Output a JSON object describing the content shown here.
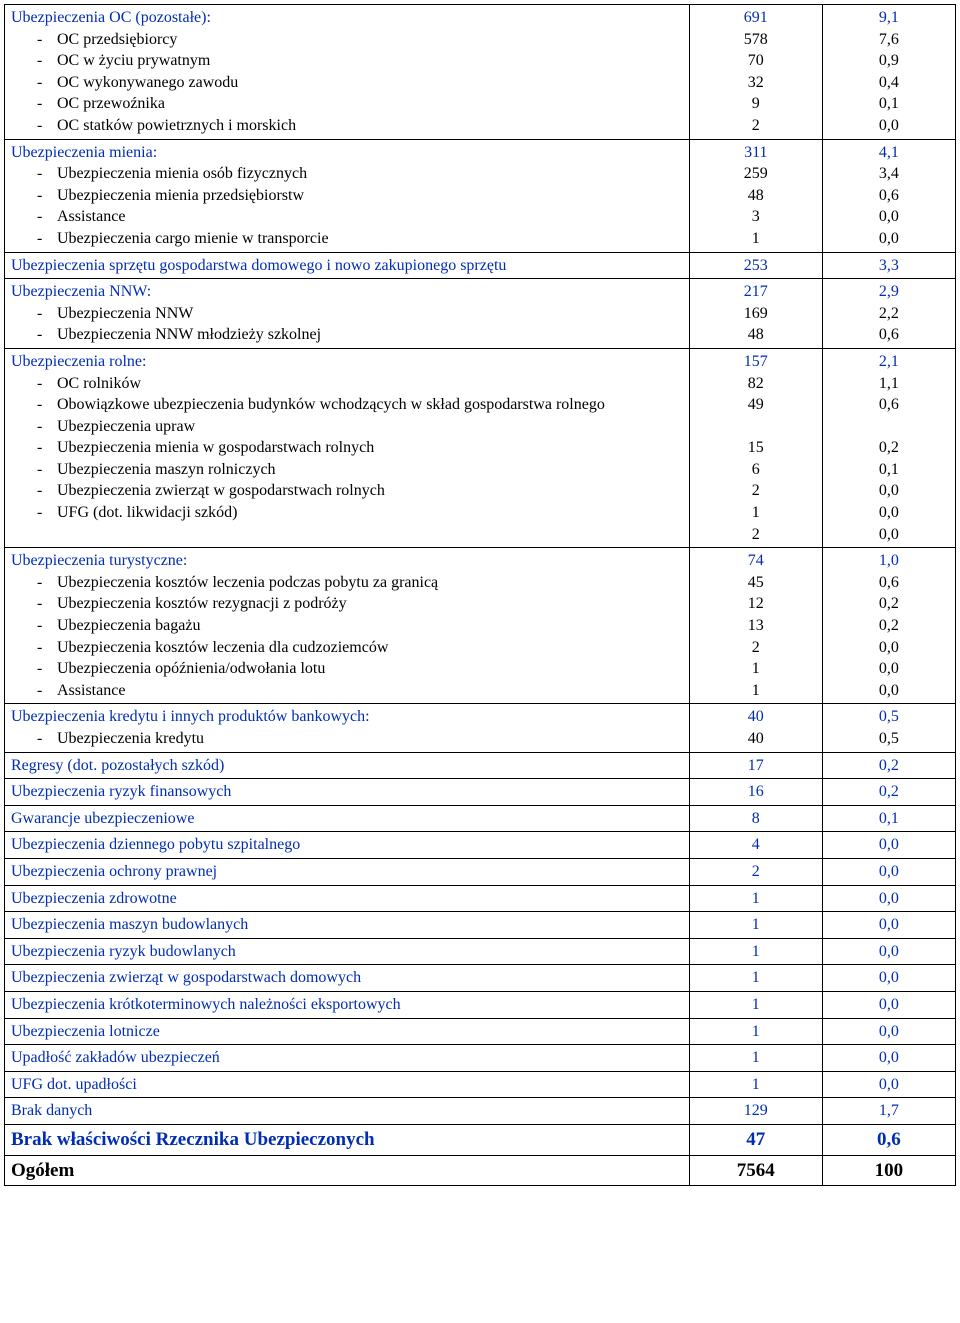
{
  "colors": {
    "category": "#002db3",
    "subitem": "#000000",
    "border": "#000000",
    "background": "#ffffff"
  },
  "columns": {
    "label_width_pct": 72,
    "v1_width_pct": 14,
    "v2_width_pct": 14
  },
  "sections": [
    {
      "header": {
        "label": "Ubezpieczenia OC (pozostałe):",
        "v1": "691",
        "v2": "9,1"
      },
      "items": [
        {
          "label": "OC przedsiębiorcy",
          "v1": "578",
          "v2": "7,6"
        },
        {
          "label": "OC w życiu prywatnym",
          "v1": "70",
          "v2": "0,9"
        },
        {
          "label": "OC wykonywanego zawodu",
          "v1": "32",
          "v2": "0,4"
        },
        {
          "label": "OC przewoźnika",
          "v1": "9",
          "v2": "0,1"
        },
        {
          "label": "OC statków powietrznych i morskich",
          "v1": "2",
          "v2": "0,0"
        }
      ]
    },
    {
      "header": {
        "label": "Ubezpieczenia mienia:",
        "v1": "311",
        "v2": "4,1"
      },
      "items": [
        {
          "label": "Ubezpieczenia mienia osób fizycznych",
          "v1": "259",
          "v2": "3,4"
        },
        {
          "label": "Ubezpieczenia mienia przedsiębiorstw",
          "v1": "48",
          "v2": "0,6"
        },
        {
          "label": "Assistance",
          "v1": "3",
          "v2": "0,0"
        },
        {
          "label": "Ubezpieczenia cargo mienie w transporcie",
          "v1": "1",
          "v2": "0,0"
        }
      ]
    },
    {
      "header": {
        "label": "Ubezpieczenia sprzętu gospodarstwa domowego i nowo zakupionego sprzętu",
        "v1": "253",
        "v2": "3,3"
      },
      "items": []
    },
    {
      "header": {
        "label": "Ubezpieczenia NNW:",
        "v1": "217",
        "v2": "2,9"
      },
      "items": [
        {
          "label": "Ubezpieczenia NNW",
          "v1": "169",
          "v2": "2,2"
        },
        {
          "label": "Ubezpieczenia NNW młodzieży szkolnej",
          "v1": "48",
          "v2": "0,6"
        }
      ]
    },
    {
      "header": {
        "label": "Ubezpieczenia rolne:",
        "v1": "157",
        "v2": "2,1"
      },
      "items": [
        {
          "label": "OC rolników",
          "v1": "82",
          "v2": "1,1"
        },
        {
          "label": "Obowiązkowe ubezpieczenia budynków wchodzących w skład gospodarstwa rolnego",
          "v1": "49",
          "v2": "0,6",
          "wrap": true
        },
        {
          "label": "Ubezpieczenia upraw",
          "v1": "15",
          "v2": "0,2"
        },
        {
          "label": "Ubezpieczenia mienia w gospodarstwach rolnych",
          "v1": "6",
          "v2": "0,1"
        },
        {
          "label": "Ubezpieczenia maszyn rolniczych",
          "v1": "2",
          "v2": "0,0"
        },
        {
          "label": "Ubezpieczenia zwierząt w gospodarstwach rolnych",
          "v1": "1",
          "v2": "0,0"
        },
        {
          "label": "UFG (dot. likwidacji szkód)",
          "v1": "2",
          "v2": "0,0"
        }
      ]
    },
    {
      "header": {
        "label": "Ubezpieczenia turystyczne:",
        "v1": "74",
        "v2": "1,0"
      },
      "items": [
        {
          "label": "Ubezpieczenia kosztów leczenia podczas pobytu za granicą",
          "v1": "45",
          "v2": "0,6"
        },
        {
          "label": "Ubezpieczenia kosztów rezygnacji z podróży",
          "v1": "12",
          "v2": "0,2"
        },
        {
          "label": "Ubezpieczenia bagażu",
          "v1": "13",
          "v2": "0,2"
        },
        {
          "label": "Ubezpieczenia kosztów leczenia dla cudzoziemców",
          "v1": "2",
          "v2": "0,0"
        },
        {
          "label": "Ubezpieczenia opóźnienia/odwołania lotu",
          "v1": "1",
          "v2": "0,0"
        },
        {
          "label": "Assistance",
          "v1": "1",
          "v2": "0,0"
        }
      ]
    },
    {
      "header": {
        "label": "Ubezpieczenia kredytu i innych produktów bankowych:",
        "v1": "40",
        "v2": "0,5"
      },
      "items": [
        {
          "label": "Ubezpieczenia kredytu",
          "v1": "40",
          "v2": "0,5"
        }
      ]
    },
    {
      "header": {
        "label": "Regresy (dot. pozostałych szkód)",
        "v1": "17",
        "v2": "0,2"
      },
      "items": []
    },
    {
      "header": {
        "label": "Ubezpieczenia ryzyk finansowych",
        "v1": "16",
        "v2": "0,2"
      },
      "items": []
    },
    {
      "header": {
        "label": "Gwarancje ubezpieczeniowe",
        "v1": "8",
        "v2": "0,1"
      },
      "items": []
    },
    {
      "header": {
        "label": "Ubezpieczenia dziennego pobytu szpitalnego",
        "v1": "4",
        "v2": "0,0"
      },
      "items": []
    },
    {
      "header": {
        "label": "Ubezpieczenia ochrony prawnej",
        "v1": "2",
        "v2": "0,0"
      },
      "items": []
    },
    {
      "header": {
        "label": "Ubezpieczenia zdrowotne",
        "v1": "1",
        "v2": "0,0"
      },
      "items": []
    },
    {
      "header": {
        "label": "Ubezpieczenia maszyn budowlanych",
        "v1": "1",
        "v2": "0,0"
      },
      "items": []
    },
    {
      "header": {
        "label": "Ubezpieczenia ryzyk budowlanych",
        "v1": "1",
        "v2": "0,0"
      },
      "items": []
    },
    {
      "header": {
        "label": "Ubezpieczenia zwierząt w gospodarstwach domowych",
        "v1": "1",
        "v2": "0,0"
      },
      "items": []
    },
    {
      "header": {
        "label": "Ubezpieczenia krótkoterminowych należności eksportowych",
        "v1": "1",
        "v2": "0,0"
      },
      "items": []
    },
    {
      "header": {
        "label": "Ubezpieczenia lotnicze",
        "v1": "1",
        "v2": "0,0"
      },
      "items": []
    },
    {
      "header": {
        "label": "Upadłość zakładów ubezpieczeń",
        "v1": "1",
        "v2": "0,0"
      },
      "items": []
    },
    {
      "header": {
        "label": "UFG dot. upadłości",
        "v1": "1",
        "v2": "0,0"
      },
      "items": []
    },
    {
      "header": {
        "label": "Brak danych",
        "v1": "129",
        "v2": "1,7"
      },
      "items": []
    }
  ],
  "footer": [
    {
      "label": "Brak właściwości Rzecznika Ubezpieczonych",
      "v1": "47",
      "v2": "0,6",
      "style": "blue-bold-big"
    },
    {
      "label": "Ogółem",
      "v1": "7564",
      "v2": "100",
      "style": "black-bold-big"
    }
  ]
}
